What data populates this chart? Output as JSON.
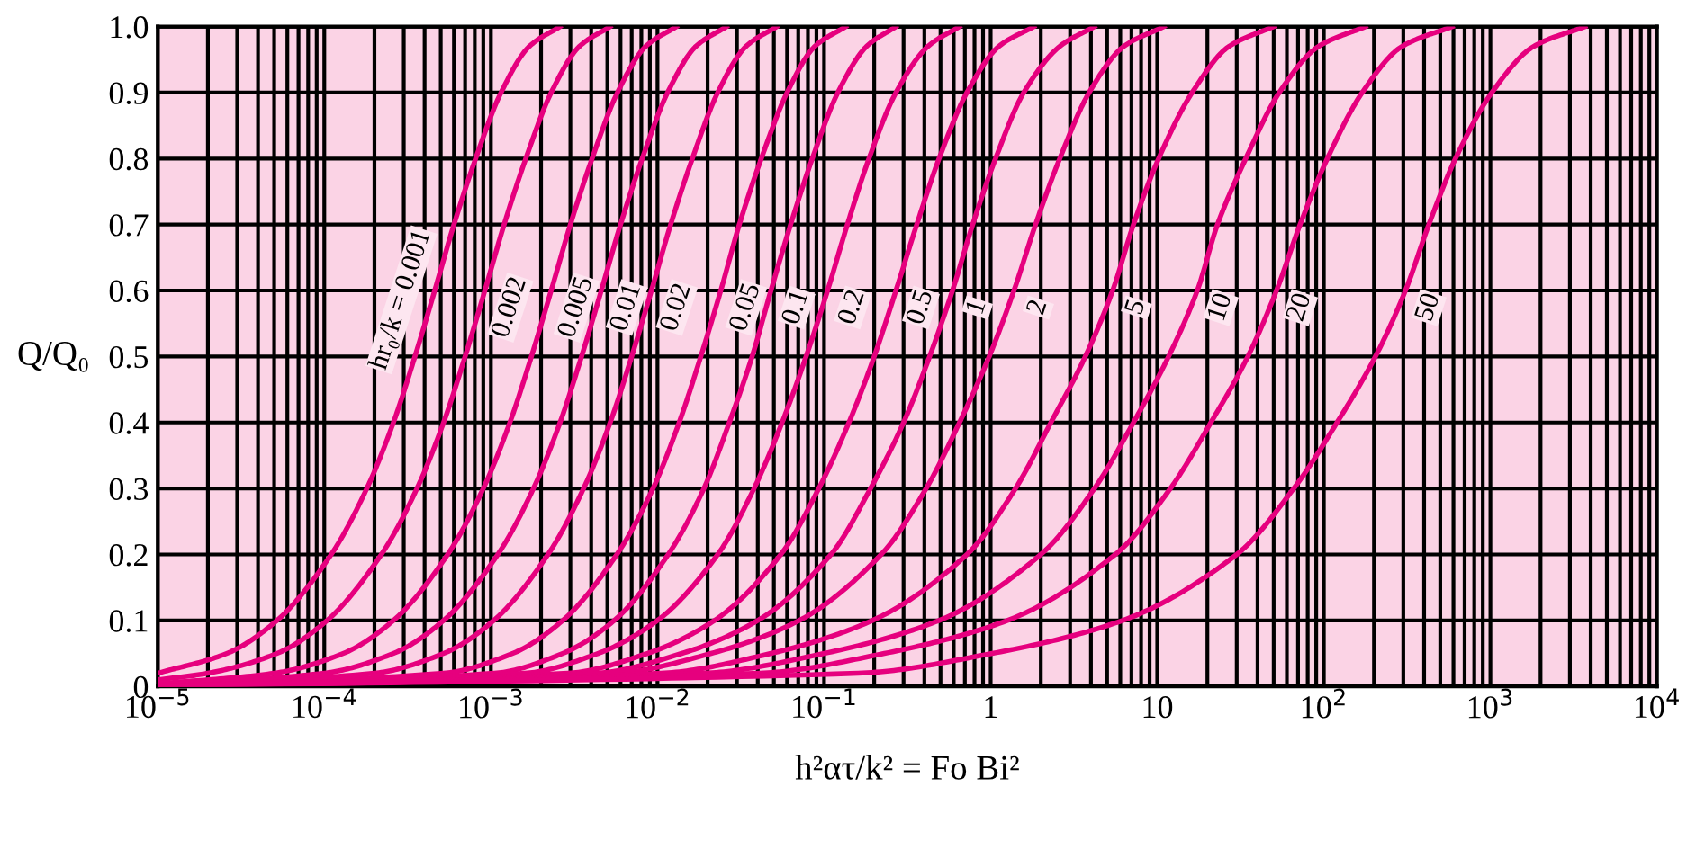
{
  "chart_data": {
    "type": "line",
    "xlabel": "h²ατ/k² = Fo Bi²",
    "ylabel": "Q/Q₀",
    "log": "x",
    "grid": true,
    "legend": false,
    "marker": "none",
    "line_style": "solid",
    "xlim": [
      1e-05,
      10000.0
    ],
    "ylim": [
      0,
      1.0
    ],
    "xticks": [
      {
        "value": 1e-05,
        "label": "10$^{−5}$"
      },
      {
        "value": 0.0001,
        "label": "10$^{−4}$"
      },
      {
        "value": 0.001,
        "label": "10$^{−3}$"
      },
      {
        "value": 0.01,
        "label": "10$^{−2}$"
      },
      {
        "value": 0.1,
        "label": "10$^{−1}$"
      },
      1,
      10,
      {
        "value": 100,
        "label": "10$^{2}$"
      },
      {
        "value": 1000,
        "label": "10$^{3}$"
      },
      {
        "value": 10000,
        "label": "10$^{4}$"
      }
    ],
    "yticks": [
      0,
      0.1,
      0.2,
      0.3,
      0.4,
      0.5,
      0.6,
      0.7,
      0.8,
      0.9,
      {
        "value": 1.0,
        "label": "1.0"
      }
    ],
    "series": [
      {
        "name": "hr₀/k = 0.001",
        "color": "#e6007e",
        "x": [
          1e-05,
          2.6e-05,
          5.2e-05,
          0.00011,
          0.00018,
          0.00026,
          0.00035,
          0.00046,
          0.0006,
          0.00081,
          0.00115,
          0.0017,
          0.0026
        ],
        "values": [
          0.02,
          0.05,
          0.1,
          0.2,
          0.3,
          0.4,
          0.5,
          0.6,
          0.7,
          0.8,
          0.9,
          0.97,
          1.0
        ]
      },
      {
        "name": "0.002",
        "color": "#e6007e",
        "x": [
          1e-05,
          2e-05,
          5.2e-05,
          0.000104,
          0.00022,
          0.00036,
          0.00052,
          0.0007,
          0.00092,
          0.0012,
          0.00162,
          0.0023,
          0.0034,
          0.0052
        ],
        "values": [
          0.01,
          0.02,
          0.05,
          0.1,
          0.2,
          0.3,
          0.4,
          0.5,
          0.6,
          0.7,
          0.8,
          0.9,
          0.97,
          1.0
        ]
      },
      {
        "name": "0.005",
        "color": "#e6007e",
        "x": [
          1e-05,
          5e-05,
          0.00013,
          0.00026,
          0.00055,
          0.0009,
          0.0013,
          0.00175,
          0.0023,
          0.003,
          0.00405,
          0.00575,
          0.0085,
          0.013
        ],
        "values": [
          0.004,
          0.02,
          0.05,
          0.1,
          0.2,
          0.3,
          0.4,
          0.5,
          0.6,
          0.7,
          0.8,
          0.9,
          0.97,
          1.0
        ]
      },
      {
        "name": "0.01",
        "color": "#e6007e",
        "x": [
          1e-05,
          0.0001,
          0.00026,
          0.00052,
          0.0011,
          0.0018,
          0.0026,
          0.0035,
          0.0046,
          0.006,
          0.0081,
          0.0115,
          0.017,
          0.026
        ],
        "values": [
          0.002,
          0.02,
          0.05,
          0.1,
          0.2,
          0.3,
          0.4,
          0.5,
          0.6,
          0.7,
          0.8,
          0.9,
          0.97,
          1.0
        ]
      },
      {
        "name": "0.02",
        "color": "#e6007e",
        "x": [
          1e-05,
          0.0002,
          0.00052,
          0.00104,
          0.0022,
          0.0036,
          0.0052,
          0.007,
          0.0092,
          0.012,
          0.0162,
          0.023,
          0.034,
          0.052
        ],
        "values": [
          0.001,
          0.02,
          0.05,
          0.1,
          0.2,
          0.3,
          0.4,
          0.5,
          0.6,
          0.7,
          0.8,
          0.9,
          0.97,
          1.0
        ]
      },
      {
        "name": "0.05",
        "color": "#e6007e",
        "x": [
          1e-05,
          0.00052,
          0.00135,
          0.0027,
          0.0057,
          0.0094,
          0.0135,
          0.0182,
          0.024,
          0.031,
          0.042,
          0.06,
          0.088,
          0.135
        ],
        "values": [
          0,
          0.02,
          0.05,
          0.1,
          0.2,
          0.3,
          0.4,
          0.5,
          0.6,
          0.7,
          0.8,
          0.9,
          0.97,
          1.0
        ]
      },
      {
        "name": "0.1",
        "color": "#e6007e",
        "x": [
          1e-05,
          0.00105,
          0.0027,
          0.0055,
          0.0116,
          0.019,
          0.027,
          0.037,
          0.048,
          0.063,
          0.085,
          0.121,
          0.18,
          0.27
        ],
        "values": [
          0,
          0.02,
          0.05,
          0.1,
          0.2,
          0.3,
          0.4,
          0.5,
          0.6,
          0.7,
          0.8,
          0.9,
          0.97,
          1.0
        ]
      },
      {
        "name": "0.2",
        "color": "#e6007e",
        "x": [
          1e-05,
          0.0016,
          0.0044,
          0.01,
          0.023,
          0.038,
          0.056,
          0.078,
          0.105,
          0.138,
          0.186,
          0.27,
          0.42,
          0.65
        ],
        "values": [
          0,
          0.02,
          0.05,
          0.1,
          0.2,
          0.3,
          0.4,
          0.5,
          0.6,
          0.7,
          0.8,
          0.9,
          0.97,
          1.0
        ]
      },
      {
        "name": "0.5",
        "color": "#e6007e",
        "x": [
          1e-05,
          0.0029,
          0.0087,
          0.022,
          0.055,
          0.093,
          0.141,
          0.2,
          0.27,
          0.36,
          0.49,
          0.72,
          1.12,
          1.82
        ],
        "values": [
          0,
          0.02,
          0.05,
          0.1,
          0.2,
          0.3,
          0.4,
          0.5,
          0.6,
          0.7,
          0.8,
          0.9,
          0.97,
          1.0
        ]
      },
      {
        "name": "1",
        "color": "#e6007e",
        "x": [
          1e-05,
          0.0043,
          0.014,
          0.04,
          0.11,
          0.19,
          0.3,
          0.43,
          0.59,
          0.78,
          1.07,
          1.58,
          2.6,
          4.2
        ],
        "values": [
          0,
          0.02,
          0.05,
          0.1,
          0.2,
          0.3,
          0.4,
          0.5,
          0.6,
          0.7,
          0.8,
          0.9,
          0.97,
          1.0
        ]
      },
      {
        "name": "2",
        "color": "#e6007e",
        "x": [
          1e-05,
          0.0056,
          0.021,
          0.071,
          0.22,
          0.41,
          0.65,
          0.98,
          1.38,
          1.86,
          2.6,
          3.9,
          6.3,
          11
        ],
        "values": [
          0,
          0.02,
          0.05,
          0.1,
          0.2,
          0.3,
          0.4,
          0.5,
          0.6,
          0.7,
          0.8,
          0.9,
          0.97,
          1.0
        ]
      },
      {
        "name": "5",
        "color": "#e6007e",
        "x": [
          1e-05,
          0.0105,
          0.048,
          0.195,
          0.72,
          1.41,
          2.3,
          3.7,
          5.4,
          7.2,
          10.2,
          16.2,
          27,
          50
        ],
        "values": [
          0,
          0.02,
          0.05,
          0.1,
          0.2,
          0.3,
          0.4,
          0.5,
          0.6,
          0.7,
          0.8,
          0.9,
          0.97,
          1.0
        ]
      },
      {
        "name": "10",
        "color": "#e6007e",
        "x": [
          1e-05,
          0.019,
          0.1,
          0.49,
          2.0,
          4.2,
          7.2,
          11.7,
          17.4,
          23,
          34,
          54,
          93,
          178
        ],
        "values": [
          0,
          0.02,
          0.05,
          0.1,
          0.2,
          0.3,
          0.4,
          0.5,
          0.6,
          0.7,
          0.8,
          0.9,
          0.97,
          1.0
        ]
      },
      {
        "name": "20",
        "color": "#e6007e",
        "x": [
          1e-05,
          0.041,
          0.23,
          1.26,
          5.6,
          12,
          21,
          35,
          52,
          72,
          105,
          170,
          295,
          590
        ],
        "values": [
          0,
          0.02,
          0.05,
          0.1,
          0.2,
          0.3,
          0.4,
          0.5,
          0.6,
          0.7,
          0.8,
          0.9,
          0.97,
          1.0
        ]
      },
      {
        "name": "50",
        "color": "#e6007e",
        "x": [
          1e-05,
          0.16,
          1.02,
          6.2,
          30,
          66,
          120,
          204,
          309,
          427,
          617,
          1020,
          1820,
          3700
        ],
        "values": [
          0,
          0.02,
          0.05,
          0.1,
          0.2,
          0.3,
          0.4,
          0.5,
          0.6,
          0.7,
          0.8,
          0.9,
          0.97,
          1.0
        ]
      }
    ]
  }
}
